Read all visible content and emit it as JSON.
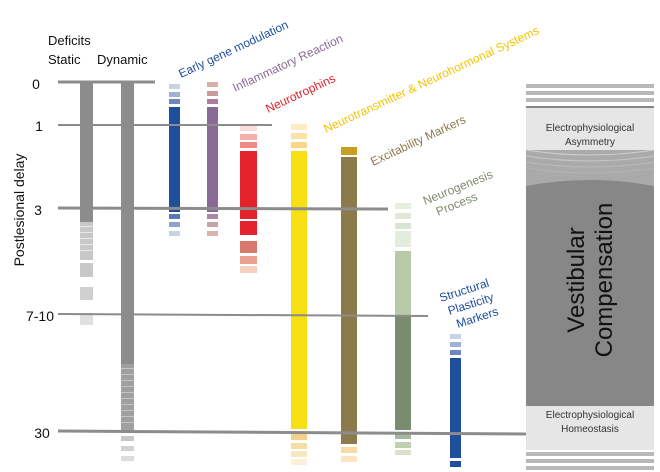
{
  "header": {
    "deficits": "Deficits",
    "static": "Static",
    "dynamic": "Dynamic"
  },
  "axis": {
    "label": "Postlesional delay",
    "ticks": [
      "0",
      "1",
      "3",
      "7-10",
      "30"
    ]
  },
  "processes": {
    "early_gene": {
      "label": "Early gene modulation",
      "color": "#1f4e9c"
    },
    "inflammatory": {
      "label": "Inflammatory Reaction",
      "color": "#8a6a94"
    },
    "neurotrophins": {
      "label": "Neurotrophins",
      "color": "#e3222b"
    },
    "neurotransmitter": {
      "label": "Neurotransmitter & Neurohormonal Systems",
      "color": "#f7e011"
    },
    "excitability": {
      "label": "Excitability Markers",
      "color": "#8c7a4c"
    },
    "neurogenesis": {
      "label": "Neurogenesis Process",
      "line1": "Neurogenesis",
      "line2": "Process",
      "color": "#7a8c70"
    },
    "structural": {
      "label": "Structural Plasticity Markers",
      "line1": "Structural",
      "line2": "Plasticity",
      "line3": "Markers",
      "color": "#1f4e9c"
    }
  },
  "compensation": {
    "title": "Vestibular Compensation",
    "line1": "Vestibular",
    "line2": "Compensation",
    "top_label_1": "Electrophysiological",
    "top_label_2": "Asymmetry",
    "bottom_label_1": "Electrophysiological",
    "bottom_label_2": "Homeostasis"
  }
}
